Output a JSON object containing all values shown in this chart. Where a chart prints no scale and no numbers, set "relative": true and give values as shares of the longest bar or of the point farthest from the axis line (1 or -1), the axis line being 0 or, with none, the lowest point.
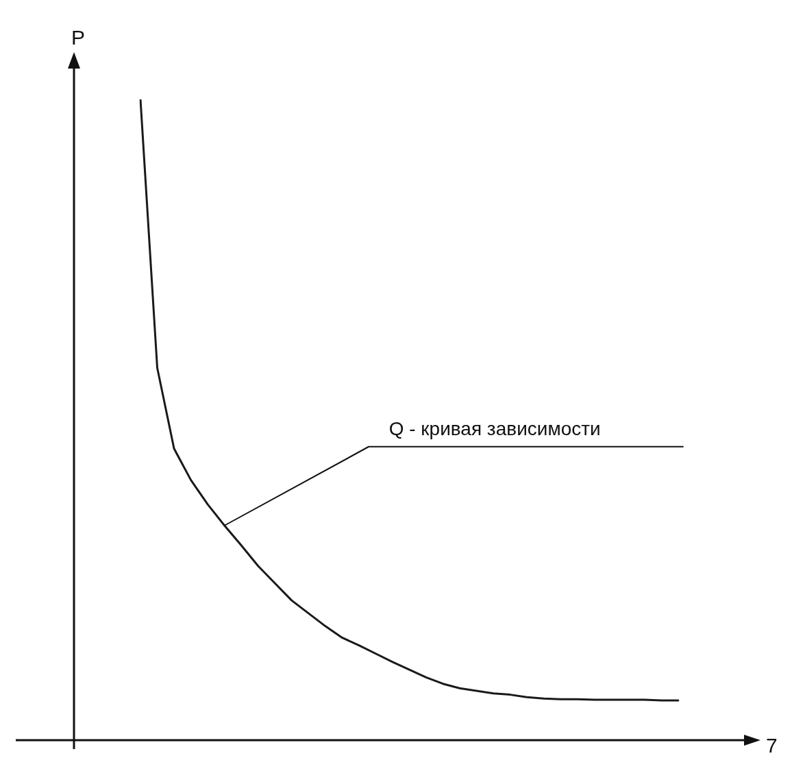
{
  "chart_data": {
    "type": "line",
    "relative": true,
    "xlabel": "7",
    "ylabel": "P",
    "legend": false,
    "marker": "none",
    "line_style": "solid",
    "categories": [
      null,
      null,
      null,
      null,
      null,
      null,
      null,
      null,
      null,
      null,
      null,
      null,
      null,
      null,
      null,
      null,
      null,
      null,
      null,
      null,
      null,
      null,
      null,
      null,
      null,
      null,
      null,
      null,
      null,
      null,
      null,
      null,
      null
    ],
    "series": [
      {
        "color": "#1a1a1a",
        "values": [
          1,
          0.581,
          0.455,
          0.406,
          0.368,
          0.335,
          0.304,
          0.272,
          0.245,
          0.218,
          0.198,
          0.178,
          0.16,
          0.148,
          0.135,
          0.122,
          0.11,
          0.098,
          0.088,
          0.081,
          0.077,
          0.073,
          0.071,
          0.067,
          0.065,
          0.064,
          0.064,
          0.063,
          0.063,
          0.063,
          0.063,
          0.062,
          0.062
        ]
      }
    ],
    "annotations": [
      "Q - кривая зависимости"
    ]
  }
}
